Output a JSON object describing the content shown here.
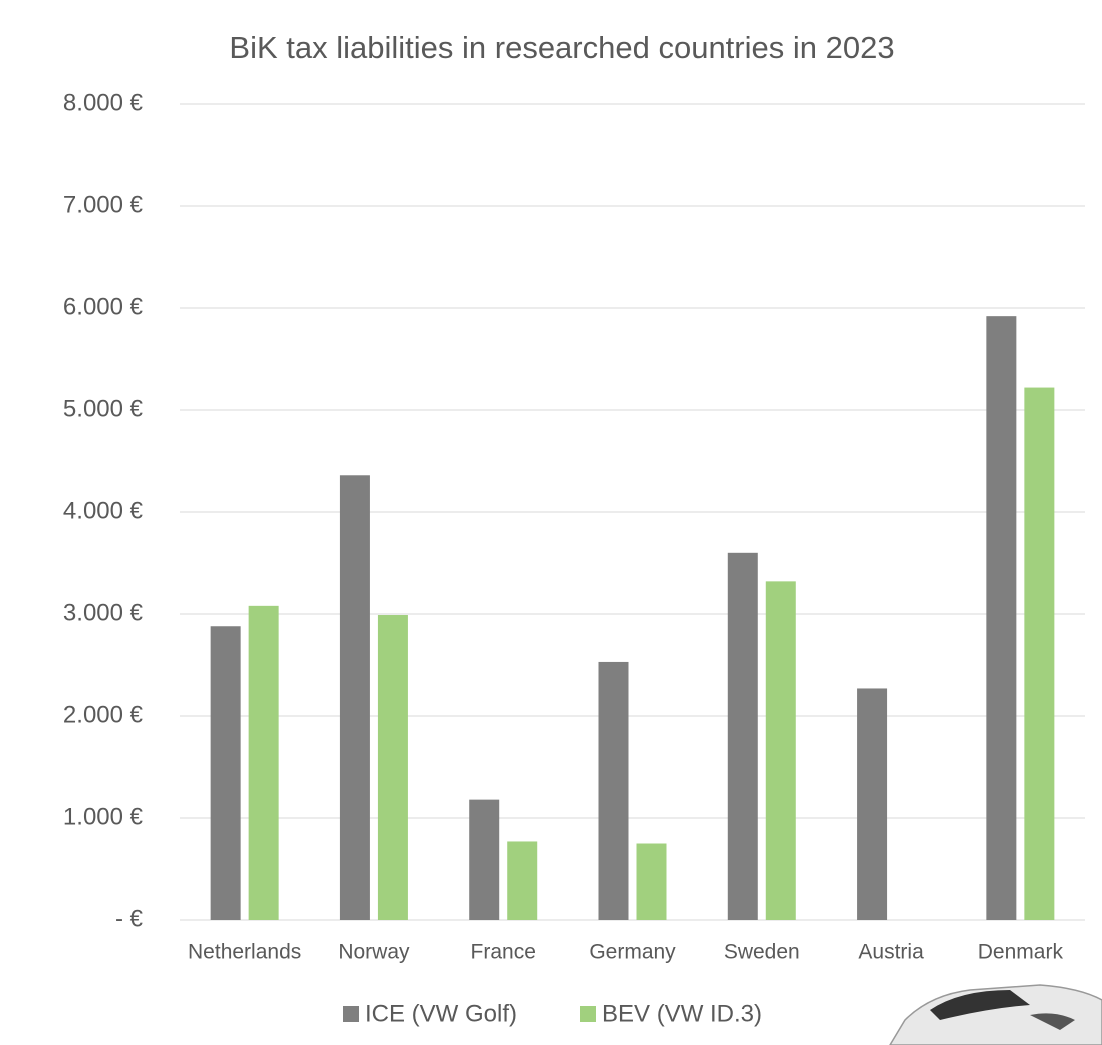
{
  "chart_data": {
    "type": "bar",
    "title": "BiK tax liabilities in researched countries in 2023",
    "categories": [
      "Netherlands",
      "Norway",
      "France",
      "Germany",
      "Sweden",
      "Austria",
      "Denmark"
    ],
    "series": [
      {
        "name": "ICE  (VW Golf)",
        "color": "#7f7f7f",
        "values": [
          2880,
          4360,
          1180,
          2530,
          3600,
          2270,
          5920
        ]
      },
      {
        "name": "BEV  (VW ID.3)",
        "color": "#a1d07e",
        "values": [
          3080,
          2990,
          770,
          750,
          3320,
          0,
          5220
        ]
      }
    ],
    "ylim": [
      0,
      8000
    ],
    "yticks": [
      {
        "value": 0,
        "label": "-   €"
      },
      {
        "value": 1000,
        "label": "1.000 €"
      },
      {
        "value": 2000,
        "label": "2.000 €"
      },
      {
        "value": 3000,
        "label": "3.000 €"
      },
      {
        "value": 4000,
        "label": "4.000 €"
      },
      {
        "value": 5000,
        "label": "5.000 €"
      },
      {
        "value": 6000,
        "label": "6.000 €"
      },
      {
        "value": 7000,
        "label": "7.000 €"
      },
      {
        "value": 8000,
        "label": "8.000 €"
      }
    ],
    "grid": true
  }
}
